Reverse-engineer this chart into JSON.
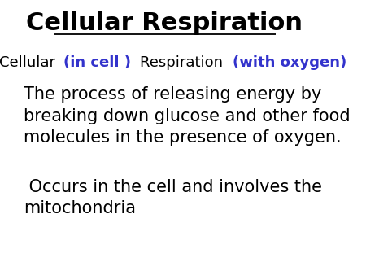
{
  "title": "Cellular Respiration",
  "title_fontsize": 22,
  "title_color": "#000000",
  "subtitle_parts": [
    {
      "text": "Cellular ",
      "color": "#000000",
      "bold": false
    },
    {
      "text": "(in cell ) ",
      "color": "#3333cc",
      "bold": true
    },
    {
      "text": "Respiration ",
      "color": "#000000",
      "bold": false
    },
    {
      "text": "(with oxygen)",
      "color": "#3333cc",
      "bold": true
    }
  ],
  "subtitle_fontsize": 13,
  "body_text1": "The process of releasing energy by\nbreaking down glucose and other food\nmolecules in the presence of oxygen.",
  "body_text2": " Occurs in the cell and involves the\nmitochondria",
  "body_fontsize": 15,
  "body_color": "#000000",
  "background_color": "#ffffff"
}
